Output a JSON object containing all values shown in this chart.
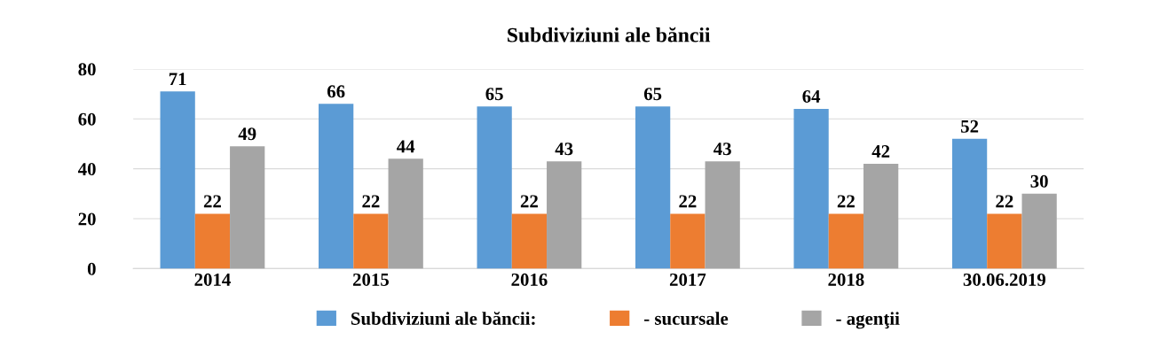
{
  "chart_data": {
    "type": "bar",
    "title": "Subdiviziuni ale băncii",
    "categories": [
      "2014",
      "2015",
      "2016",
      "2017",
      "2018",
      "30.06.2019"
    ],
    "series": [
      {
        "name": "Subdiviziuni ale băncii:",
        "color": "#5b9bd5",
        "values": [
          71,
          66,
          65,
          65,
          64,
          52
        ]
      },
      {
        "name": "- sucursale",
        "color": "#ed7d31",
        "values": [
          22,
          22,
          22,
          22,
          22,
          22
        ]
      },
      {
        "name": "- agenţii",
        "color": "#a5a5a5",
        "values": [
          49,
          44,
          43,
          43,
          42,
          30
        ]
      }
    ],
    "ylim": [
      0,
      80
    ],
    "yticks": [
      0,
      20,
      40,
      60,
      80
    ],
    "grid": "y",
    "legend": "bottom",
    "data_labels": true
  }
}
